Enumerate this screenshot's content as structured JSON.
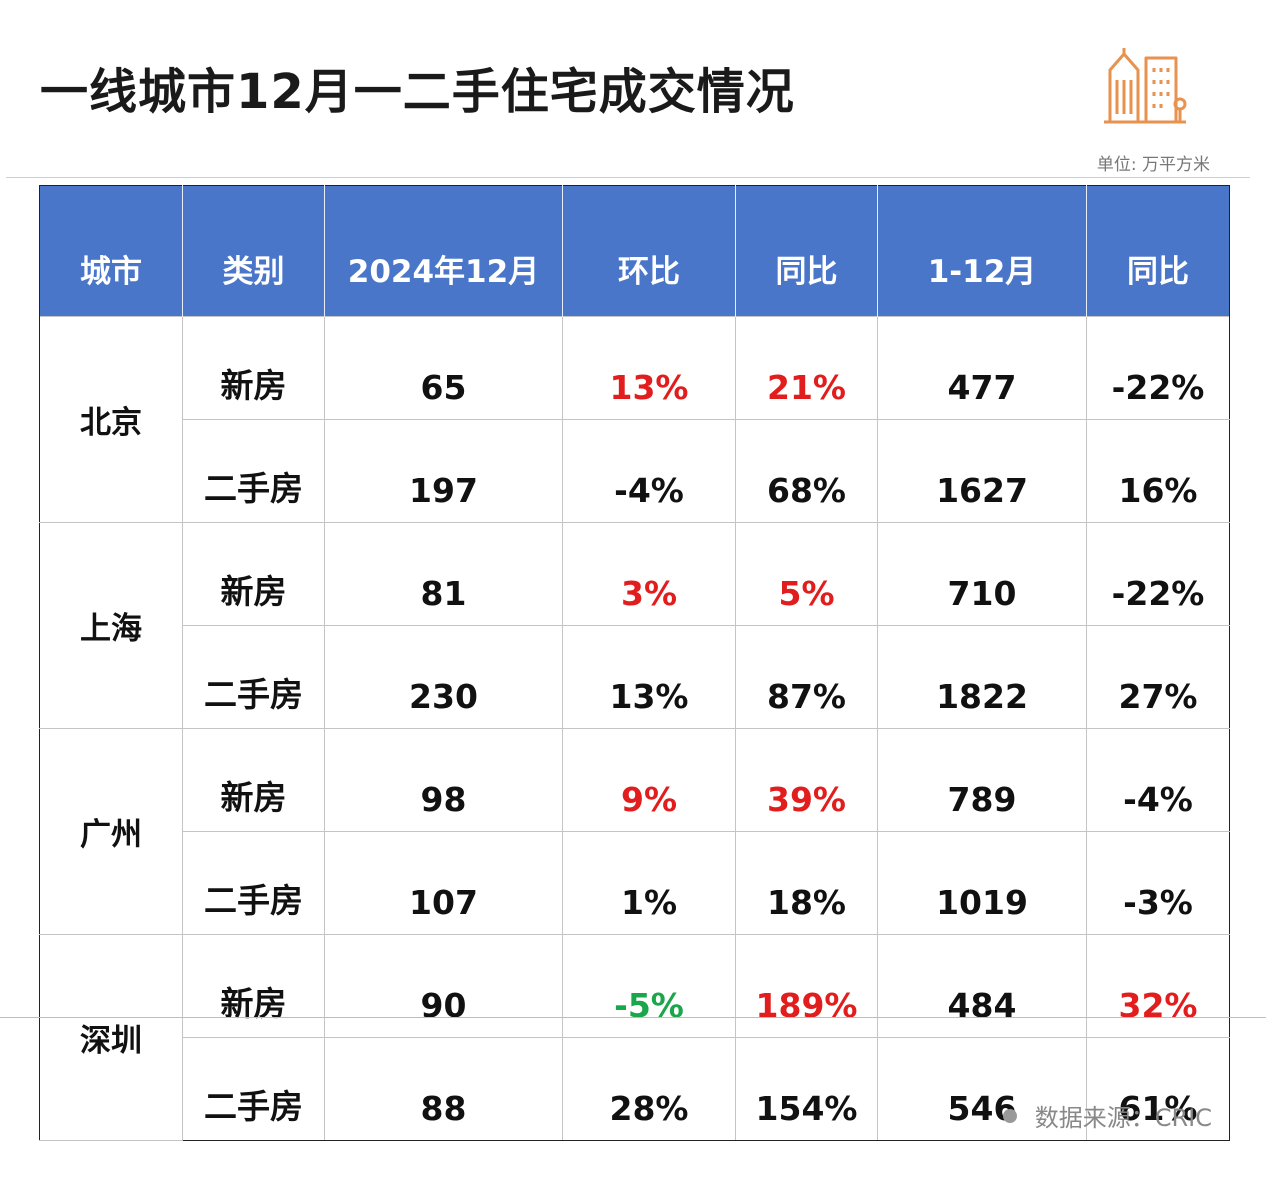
{
  "title": "一线城市12月一二手住宅成交情况",
  "unit": "单位: 万平方米",
  "headers": [
    "城市",
    "类别",
    "2024年12月",
    "环比",
    "同比",
    "1-12月",
    "同比"
  ],
  "cities": [
    {
      "name": "北京",
      "rows": [
        {
          "type": "新房",
          "dec": "65",
          "mom": "13%",
          "yoy": "21%",
          "ytd": "477",
          "ytd_yoy": "-22%"
        },
        {
          "type": "二手房",
          "dec": "197",
          "mom": "-4%",
          "yoy": "68%",
          "ytd": "1627",
          "ytd_yoy": "16%"
        }
      ]
    },
    {
      "name": "上海",
      "rows": [
        {
          "type": "新房",
          "dec": "81",
          "mom": "3%",
          "yoy": "5%",
          "ytd": "710",
          "ytd_yoy": "-22%"
        },
        {
          "type": "二手房",
          "dec": "230",
          "mom": "13%",
          "yoy": "87%",
          "ytd": "1822",
          "ytd_yoy": "27%"
        }
      ]
    },
    {
      "name": "广州",
      "rows": [
        {
          "type": "新房",
          "dec": "98",
          "mom": "9%",
          "yoy": "39%",
          "ytd": "789",
          "ytd_yoy": "-4%"
        },
        {
          "type": "二手房",
          "dec": "107",
          "mom": "1%",
          "yoy": "18%",
          "ytd": "1019",
          "ytd_yoy": "-3%"
        }
      ]
    },
    {
      "name": "深圳",
      "rows": [
        {
          "type": "新房",
          "dec": "90",
          "mom": "-5%",
          "yoy": "189%",
          "ytd": "484",
          "ytd_yoy": "32%"
        },
        {
          "type": "二手房",
          "dec": "88",
          "mom": "28%",
          "yoy": "154%",
          "ytd": "546",
          "ytd_yoy": "61%"
        }
      ]
    }
  ],
  "source": "数据来源：CRIC",
  "colors": {
    "header_bg": "#4a76c9",
    "up": "#e11d1d",
    "down": "#1aa64a",
    "logo": "#e8924f"
  }
}
